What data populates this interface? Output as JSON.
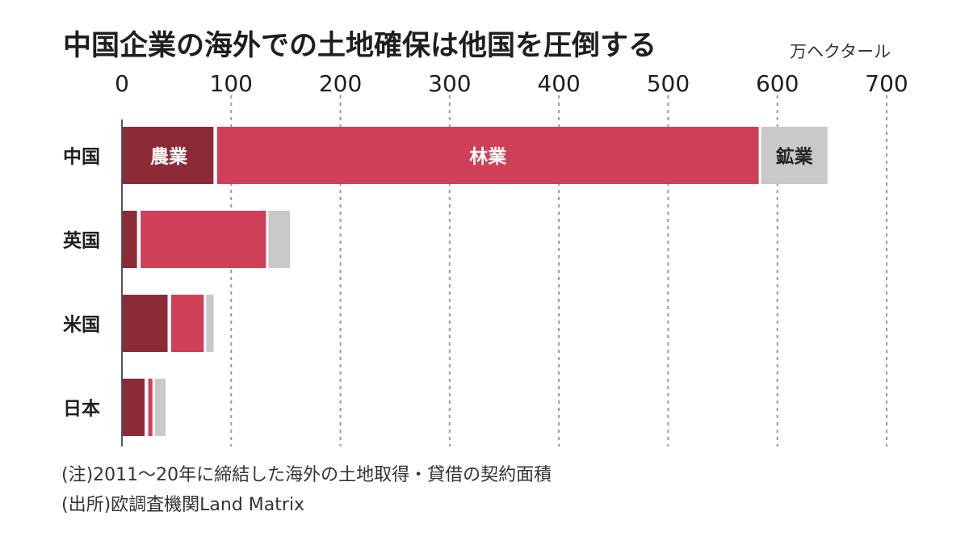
{
  "chart_data": {
    "type": "bar",
    "orientation": "horizontal",
    "stacked": true,
    "title": "中国企業の海外での土地確保は他国を圧倒する",
    "unit": "万ヘクタール",
    "xlim": [
      0,
      700
    ],
    "ticks": [
      "0",
      "100",
      "200",
      "300",
      "400",
      "500",
      "600",
      "700"
    ],
    "tick_values": [
      0,
      100,
      200,
      300,
      400,
      500,
      600,
      700
    ],
    "grid": true,
    "categories": [
      "中国",
      "英国",
      "米国",
      "日本"
    ],
    "series": [
      {
        "name": "農業",
        "color": "#8c2b37",
        "label_color": "#ffffff",
        "values": [
          86,
          16,
          44,
          23
        ]
      },
      {
        "name": "林業",
        "color": "#cf3f57",
        "label_color": "#ffffff",
        "values": [
          498,
          117,
          32,
          6
        ]
      },
      {
        "name": "鉱業",
        "color": "#c9c9c9",
        "label_color": "#222222",
        "values": [
          63,
          22,
          9,
          12
        ]
      }
    ],
    "labelled_category": "中国"
  },
  "notes": {
    "note": "(注)2011～20年に締結した海外の土地取得・貸借の契約面積",
    "source": "(出所)欧調査機関Land Matrix"
  }
}
